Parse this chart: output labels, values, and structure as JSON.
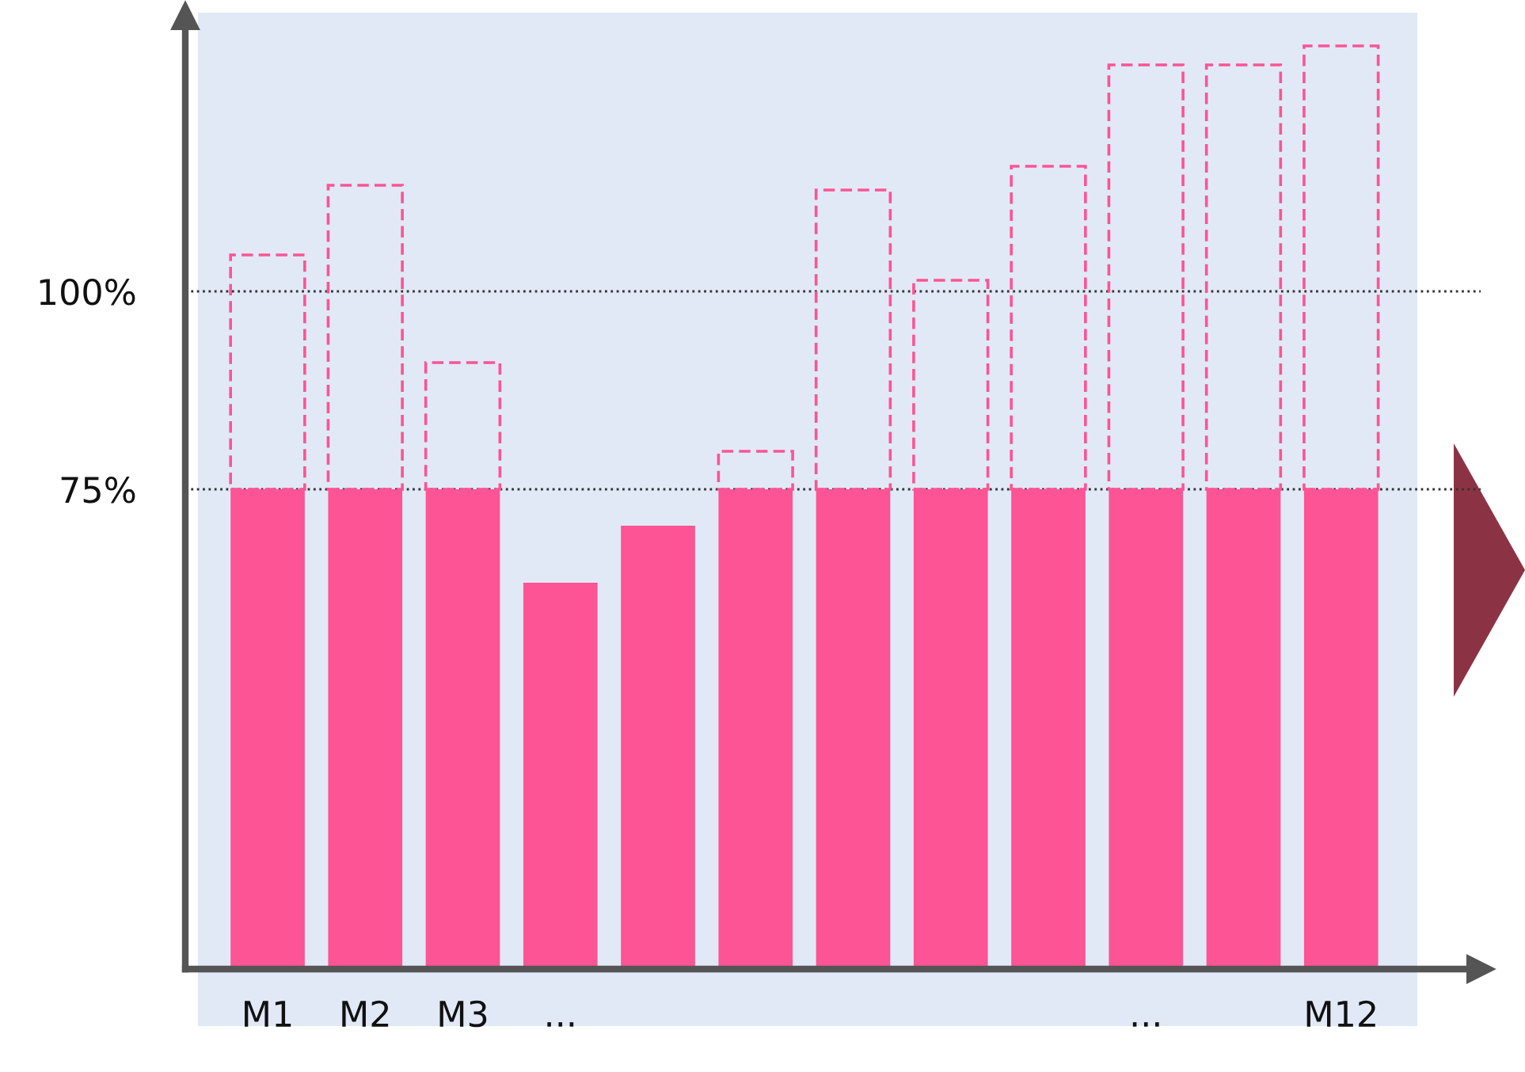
{
  "chart_data": {
    "type": "bar",
    "categories": [
      "M1",
      "M2",
      "M3",
      "...",
      null,
      null,
      null,
      null,
      null,
      "...",
      null,
      "M12"
    ],
    "series": [
      {
        "color": "#fc5494",
        "values": [
          75,
          75,
          75,
          63.2,
          70.4,
          75,
          75,
          75,
          75,
          75,
          75,
          75
        ]
      },
      {
        "color": "#fc5494",
        "line_style": "dashed",
        "base": [
          75,
          75,
          75,
          null,
          null,
          75,
          75,
          75,
          75,
          75,
          75,
          75
        ],
        "values": [
          29.6,
          38.4,
          16,
          null,
          null,
          4.8,
          37.8,
          26.4,
          40.8,
          53.6,
          53.6,
          56
        ]
      }
    ],
    "ylim": [
      14.4,
      134.8
    ],
    "yticks": [
      {
        "value": 75,
        "label": "75%"
      },
      {
        "value": 100,
        "label": "100%"
      }
    ],
    "grid": "y"
  }
}
